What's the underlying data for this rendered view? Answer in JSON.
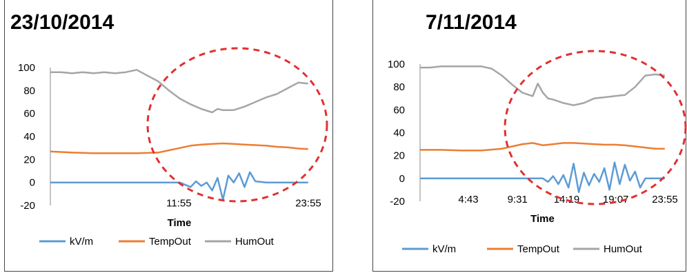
{
  "chart_data": [
    {
      "type": "line",
      "title": "23/10/2014",
      "xlabel": "Time",
      "ylabel": "",
      "ylim": [
        -20,
        100
      ],
      "yticks": [
        -20,
        0,
        20,
        40,
        60,
        80,
        100
      ],
      "xlim": [
        "0:00",
        "23:55"
      ],
      "xtick_labels": [
        "11:55",
        "23:55"
      ],
      "grid": false,
      "legend": "bottom",
      "series": [
        {
          "name": "kV/m",
          "color": "#5b9bd5",
          "x": [
            0,
            2,
            4,
            6,
            8,
            10,
            12,
            13,
            13.5,
            14,
            14.5,
            15,
            15.5,
            16,
            16.5,
            17,
            17.5,
            18,
            18.5,
            19,
            20,
            22,
            23.9
          ],
          "y": [
            0,
            0,
            0,
            0,
            0,
            0,
            0,
            -4,
            1,
            -3,
            0,
            -7,
            4,
            -15,
            6,
            0,
            8,
            -4,
            9,
            1,
            0,
            0,
            0
          ]
        },
        {
          "name": "TempOut",
          "color": "#ed7d31",
          "x": [
            0,
            2,
            4,
            6,
            8,
            10,
            11,
            12,
            13,
            14,
            15,
            16,
            17,
            18,
            19,
            20,
            21,
            22,
            23,
            23.9
          ],
          "y": [
            27,
            26,
            25.5,
            25.5,
            25.5,
            26,
            28,
            30,
            32,
            33,
            33.5,
            34,
            33.5,
            33,
            32.5,
            32,
            31,
            30.5,
            29.5,
            29
          ]
        },
        {
          "name": "HumOut",
          "color": "#a5a5a5",
          "x": [
            0,
            1,
            2,
            3,
            4,
            5,
            6,
            7,
            8,
            9,
            10,
            11,
            12,
            13,
            14,
            15,
            15.5,
            16,
            17,
            18,
            19,
            20,
            21,
            22,
            23,
            23.9
          ],
          "y": [
            96,
            96,
            95,
            96,
            95,
            96,
            95,
            96,
            98,
            93,
            88,
            80,
            73,
            68,
            64,
            61,
            64,
            63,
            63,
            66,
            70,
            74,
            77,
            82,
            87,
            86
          ]
        }
      ]
    },
    {
      "type": "line",
      "title": "7/11/2014",
      "xlabel": "Time",
      "ylabel": "",
      "ylim": [
        -20,
        100
      ],
      "yticks": [
        -20,
        0,
        20,
        40,
        60,
        80,
        100
      ],
      "xlim": [
        "0:00",
        "23:55"
      ],
      "xtick_labels": [
        "4:43",
        "9:31",
        "14:19",
        "19:07",
        "23:55"
      ],
      "grid": false,
      "legend": "bottom",
      "series": [
        {
          "name": "kV/m",
          "color": "#5b9bd5",
          "x": [
            0,
            2,
            4,
            6,
            8,
            10,
            12,
            12.5,
            13,
            13.5,
            14,
            14.5,
            15,
            15.5,
            16,
            16.5,
            17,
            17.5,
            18,
            18.5,
            19,
            19.5,
            20,
            20.5,
            21,
            21.5,
            22,
            23,
            23.9
          ],
          "y": [
            0,
            0,
            0,
            0,
            0,
            0,
            0,
            -3,
            2,
            -5,
            3,
            -8,
            13,
            -12,
            5,
            -6,
            4,
            -3,
            9,
            -10,
            14,
            -5,
            12,
            -2,
            6,
            -8,
            0,
            0,
            0
          ]
        },
        {
          "name": "TempOut",
          "color": "#ed7d31",
          "x": [
            0,
            2,
            4,
            6,
            8,
            9,
            10,
            11,
            12,
            13,
            14,
            15,
            16,
            17,
            18,
            19,
            20,
            21,
            22,
            23,
            23.9
          ],
          "y": [
            25,
            25,
            24.5,
            24.5,
            26,
            28,
            30,
            31,
            29,
            30,
            31,
            31,
            30.5,
            30,
            29.5,
            29.5,
            29,
            28,
            27,
            26,
            26
          ]
        },
        {
          "name": "HumOut",
          "color": "#a5a5a5",
          "x": [
            0,
            1,
            2,
            3,
            4,
            5,
            6,
            7,
            8,
            9,
            10,
            11,
            11.5,
            12,
            12.5,
            13,
            14,
            15,
            16,
            17,
            18,
            19,
            20,
            21,
            22,
            23,
            23.9
          ],
          "y": [
            97,
            97,
            98,
            98,
            98,
            98,
            98,
            96,
            90,
            82,
            75,
            72,
            83,
            75,
            70,
            69,
            66,
            64,
            66,
            70,
            71,
            72,
            73,
            80,
            90,
            91,
            90
          ]
        }
      ]
    }
  ]
}
